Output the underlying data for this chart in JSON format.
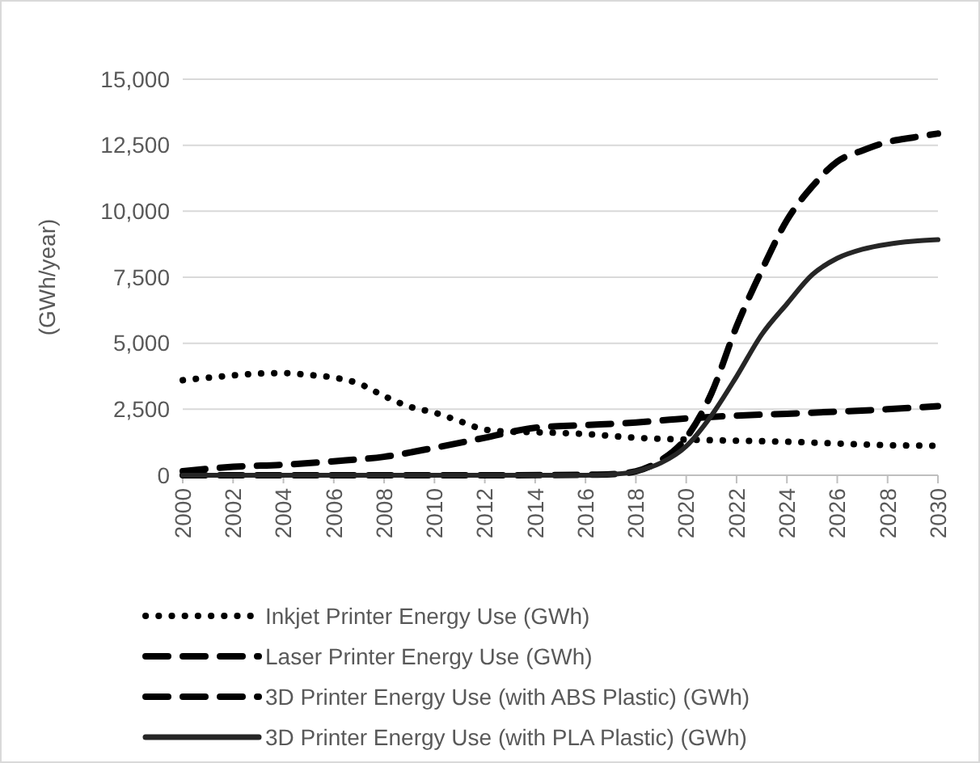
{
  "chart_data": {
    "type": "line",
    "ylabel": "(GWh/year)",
    "ylim": [
      0,
      15000
    ],
    "yticks": [
      {
        "value": 0,
        "label": "0"
      },
      {
        "value": 2500,
        "label": "2,500"
      },
      {
        "value": 5000,
        "label": "5,000"
      },
      {
        "value": 7500,
        "label": "7,500"
      },
      {
        "value": 10000,
        "label": "10,000"
      },
      {
        "value": 12500,
        "label": "12,500"
      },
      {
        "value": 15000,
        "label": "15,000"
      }
    ],
    "xlim": [
      2000,
      2030
    ],
    "xticks": [
      2000,
      2002,
      2004,
      2006,
      2008,
      2010,
      2012,
      2014,
      2016,
      2018,
      2020,
      2022,
      2024,
      2026,
      2028,
      2030
    ],
    "grid": "y",
    "legend": "bottom",
    "marker": "none",
    "series": [
      {
        "name": "Inkjet Printer Energy Use (GWh)",
        "color": "#000000",
        "line_style": "dotted",
        "x": [
          2000,
          2002,
          2003,
          2004,
          2005,
          2006,
          2007,
          2008,
          2009,
          2010,
          2011,
          2012,
          2013,
          2014,
          2016,
          2018,
          2020,
          2022,
          2024,
          2026,
          2028,
          2030
        ],
        "values": [
          3600,
          3780,
          3850,
          3870,
          3800,
          3700,
          3470,
          3000,
          2600,
          2370,
          2050,
          1730,
          1650,
          1630,
          1560,
          1420,
          1350,
          1310,
          1270,
          1200,
          1140,
          1120
        ]
      },
      {
        "name": "Laser Printer Energy Use (GWh)",
        "color": "#000000",
        "line_style": "dashed",
        "x": [
          2000,
          2002,
          2004,
          2006,
          2008,
          2010,
          2012,
          2014,
          2016,
          2018,
          2020,
          2022,
          2024,
          2026,
          2028,
          2030
        ],
        "values": [
          150,
          320,
          400,
          530,
          700,
          1040,
          1420,
          1800,
          1900,
          2000,
          2150,
          2260,
          2330,
          2410,
          2500,
          2620
        ]
      },
      {
        "name": "3D Printer Energy Use (with ABS Plastic) (GWh)",
        "color": "#000000",
        "line_style": "dashed",
        "x": [
          2000,
          2004,
          2008,
          2012,
          2016,
          2017,
          2018,
          2019,
          2020,
          2021,
          2022,
          2023,
          2024,
          2025,
          2026,
          2027,
          2028,
          2029,
          2030
        ],
        "values": [
          0,
          0,
          0,
          0,
          20,
          40,
          150,
          570,
          1420,
          3100,
          5640,
          7760,
          9660,
          10930,
          11880,
          12300,
          12620,
          12790,
          12940
        ]
      },
      {
        "name": "3D Printer Energy Use (with PLA Plastic) (GWh)",
        "color": "#262626",
        "line_style": "solid",
        "x": [
          2000,
          2004,
          2008,
          2012,
          2016,
          2017,
          2018,
          2019,
          2020,
          2021,
          2022,
          2023,
          2024,
          2025,
          2026,
          2027,
          2028,
          2029,
          2030
        ],
        "values": [
          0,
          0,
          0,
          0,
          0,
          30,
          150,
          470,
          1100,
          2260,
          3740,
          5330,
          6490,
          7590,
          8220,
          8560,
          8750,
          8860,
          8920
        ]
      }
    ]
  }
}
